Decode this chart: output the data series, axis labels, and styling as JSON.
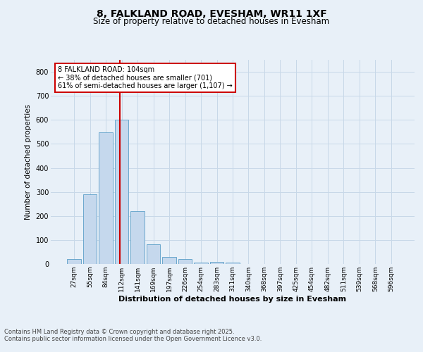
{
  "title_line1": "8, FALKLAND ROAD, EVESHAM, WR11 1XF",
  "title_line2": "Size of property relative to detached houses in Evesham",
  "xlabel": "Distribution of detached houses by size in Evesham",
  "ylabel": "Number of detached properties",
  "categories": [
    "27sqm",
    "55sqm",
    "84sqm",
    "112sqm",
    "141sqm",
    "169sqm",
    "197sqm",
    "226sqm",
    "254sqm",
    "283sqm",
    "311sqm",
    "340sqm",
    "368sqm",
    "397sqm",
    "425sqm",
    "454sqm",
    "482sqm",
    "511sqm",
    "539sqm",
    "568sqm",
    "596sqm"
  ],
  "values": [
    20,
    290,
    548,
    600,
    220,
    82,
    30,
    20,
    7,
    8,
    6,
    0,
    0,
    0,
    0,
    0,
    0,
    0,
    0,
    0,
    0
  ],
  "bar_color": "#c5d8ed",
  "bar_edge_color": "#5a9ec8",
  "grid_color": "#c8d8e8",
  "red_line_x": 2.9,
  "red_line_color": "#cc0000",
  "annotation_text": "8 FALKLAND ROAD: 104sqm\n← 38% of detached houses are smaller (701)\n61% of semi-detached houses are larger (1,107) →",
  "annotation_box_edge": "#cc0000",
  "annotation_box_face": "#ffffff",
  "ylim": [
    0,
    850
  ],
  "yticks": [
    0,
    100,
    200,
    300,
    400,
    500,
    600,
    700,
    800
  ],
  "footer_line1": "Contains HM Land Registry data © Crown copyright and database right 2025.",
  "footer_line2": "Contains public sector information licensed under the Open Government Licence v3.0.",
  "bg_color": "#e8f0f8",
  "plot_bg_color": "#e8f0f8",
  "title_fontsize": 10,
  "subtitle_fontsize": 8.5,
  "xlabel_fontsize": 8,
  "ylabel_fontsize": 7.5,
  "tick_fontsize": 6.5,
  "ann_fontsize": 7,
  "footer_fontsize": 6
}
